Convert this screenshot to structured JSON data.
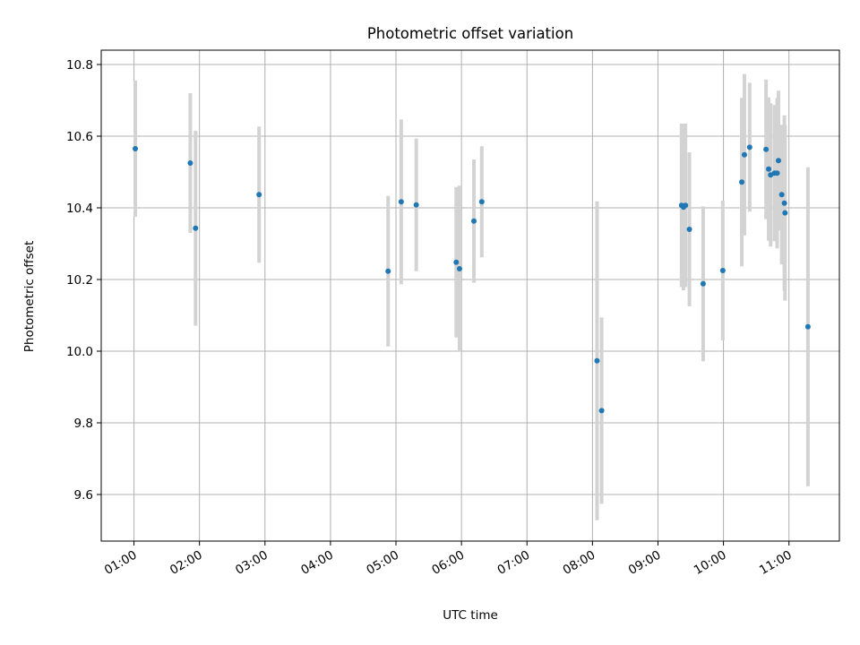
{
  "chart_data": {
    "type": "scatter",
    "title": "Photometric offset variation",
    "xlabel": "UTC time",
    "ylabel": "Photometric offset",
    "x_unit": "hours UTC",
    "xlim": [
      0.5,
      11.77
    ],
    "ylim": [
      9.47,
      10.84
    ],
    "x_ticks": [
      {
        "value": 1,
        "label": "01:00"
      },
      {
        "value": 2,
        "label": "02:00"
      },
      {
        "value": 3,
        "label": "03:00"
      },
      {
        "value": 4,
        "label": "04:00"
      },
      {
        "value": 5,
        "label": "05:00"
      },
      {
        "value": 6,
        "label": "06:00"
      },
      {
        "value": 7,
        "label": "07:00"
      },
      {
        "value": 8,
        "label": "08:00"
      },
      {
        "value": 9,
        "label": "09:00"
      },
      {
        "value": 10,
        "label": "10:00"
      },
      {
        "value": 11,
        "label": "11:00"
      }
    ],
    "y_ticks": [
      {
        "value": 9.6,
        "label": "9.6"
      },
      {
        "value": 9.8,
        "label": "9.8"
      },
      {
        "value": 10.0,
        "label": "10.0"
      },
      {
        "value": 10.2,
        "label": "10.2"
      },
      {
        "value": 10.4,
        "label": "10.4"
      },
      {
        "value": 10.6,
        "label": "10.6"
      },
      {
        "value": 10.8,
        "label": "10.8"
      }
    ],
    "grid": true,
    "point_color": "#1f77b4",
    "errorbar_color": "#d3d3d3",
    "points": [
      {
        "x": 1.02,
        "y": 10.565,
        "err": 0.19
      },
      {
        "x": 1.86,
        "y": 10.525,
        "err": 0.195
      },
      {
        "x": 1.94,
        "y": 10.343,
        "err": 0.272
      },
      {
        "x": 2.91,
        "y": 10.437,
        "err": 0.19
      },
      {
        "x": 4.88,
        "y": 10.223,
        "err": 0.21
      },
      {
        "x": 5.08,
        "y": 10.417,
        "err": 0.23
      },
      {
        "x": 5.31,
        "y": 10.408,
        "err": 0.185
      },
      {
        "x": 5.92,
        "y": 10.248,
        "err": 0.21
      },
      {
        "x": 5.97,
        "y": 10.23,
        "err": 0.232
      },
      {
        "x": 6.19,
        "y": 10.363,
        "err": 0.172
      },
      {
        "x": 6.31,
        "y": 10.417,
        "err": 0.155
      },
      {
        "x": 8.07,
        "y": 9.973,
        "err": 0.445
      },
      {
        "x": 8.14,
        "y": 9.834,
        "err": 0.26
      },
      {
        "x": 9.36,
        "y": 10.407,
        "err": 0.228
      },
      {
        "x": 9.39,
        "y": 10.402,
        "err": 0.232
      },
      {
        "x": 9.42,
        "y": 10.407,
        "err": 0.228
      },
      {
        "x": 9.48,
        "y": 10.34,
        "err": 0.215
      },
      {
        "x": 9.69,
        "y": 10.188,
        "err": 0.216
      },
      {
        "x": 9.99,
        "y": 10.225,
        "err": 0.195
      },
      {
        "x": 10.28,
        "y": 10.472,
        "err": 0.235
      },
      {
        "x": 10.32,
        "y": 10.548,
        "err": 0.225
      },
      {
        "x": 10.4,
        "y": 10.569,
        "err": 0.18
      },
      {
        "x": 10.65,
        "y": 10.563,
        "err": 0.195
      },
      {
        "x": 10.69,
        "y": 10.508,
        "err": 0.2
      },
      {
        "x": 10.72,
        "y": 10.492,
        "err": 0.2
      },
      {
        "x": 10.78,
        "y": 10.497,
        "err": 0.19
      },
      {
        "x": 10.82,
        "y": 10.497,
        "err": 0.21
      },
      {
        "x": 10.84,
        "y": 10.532,
        "err": 0.195
      },
      {
        "x": 10.89,
        "y": 10.437,
        "err": 0.195
      },
      {
        "x": 10.93,
        "y": 10.413,
        "err": 0.245
      },
      {
        "x": 10.94,
        "y": 10.386,
        "err": 0.245
      },
      {
        "x": 11.29,
        "y": 10.068,
        "err": 0.445
      }
    ]
  }
}
